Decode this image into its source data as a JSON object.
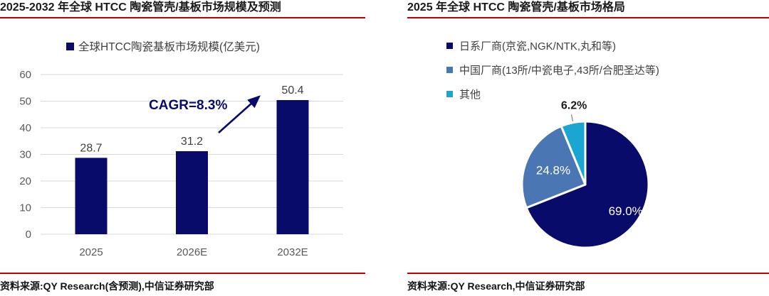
{
  "colors": {
    "navy": "#080b6a",
    "blue": "#4a77b4",
    "cyan": "#1ba6d2",
    "red_rule": "#c00000",
    "grid": "#d9d9d9",
    "axis_text": "#595959",
    "value_text": "#404040",
    "legend_text": "#3f3f3f",
    "title_text": "#1a1a1a",
    "pie_label_light": "#ffffff",
    "pie_label_dark": "#1a1a1a",
    "leader_line": "#808080"
  },
  "left_panel": {
    "title": "2025-2032 年全球 HTCC 陶瓷管壳/基板市场规模及预测",
    "source": "资料来源:QY Research(含预测),中信证券研究部"
  },
  "right_panel": {
    "title": "2025 年全球 HTCC 陶瓷管壳/基板市场格局",
    "source": "资料来源:QY Research,中信证券研究部"
  },
  "chart_data": [
    {
      "type": "bar",
      "title": "2025-2032 年全球 HTCC 陶瓷管壳/基板市场规模及预测",
      "series_label": "全球HTCC陶瓷基板市场规模(亿美元)",
      "categories": [
        "2025",
        "2026E",
        "2032E"
      ],
      "values": [
        28.7,
        31.2,
        50.4
      ],
      "value_labels": [
        "28.7",
        "31.2",
        "50.4"
      ],
      "ylim": [
        0,
        60
      ],
      "yticks": [
        0,
        10,
        20,
        30,
        40,
        50,
        60
      ],
      "grid": true,
      "legend_position": "top",
      "annotation": "CAGR=8.3%"
    },
    {
      "type": "pie",
      "title": "2025 年全球 HTCC 陶瓷管壳/基板市场格局",
      "legend": [
        "日系厂商(京瓷,NGK/NTK,丸和等)",
        "中国厂商(13所/中瓷电子,43所/合肥圣达等)",
        "其他"
      ],
      "values": [
        69.0,
        24.8,
        6.2
      ],
      "labels": [
        "69.0%",
        "24.8%",
        "6.2%"
      ],
      "slice_colors": [
        "navy",
        "blue",
        "cyan"
      ],
      "legend_position": "top",
      "start_angle_deg": 0,
      "direction": "clockwise"
    }
  ]
}
